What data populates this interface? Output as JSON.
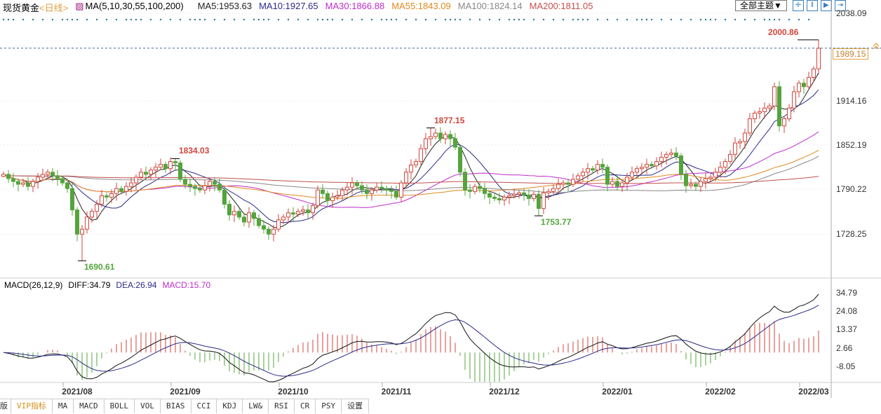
{
  "header": {
    "symbol": "现货黄金",
    "period": "<日线>",
    "ma_title": "MA(5,10,30,55,100,200)",
    "ma": [
      {
        "label": "MA5:1953.63",
        "color": "#222222"
      },
      {
        "label": "MA10:1927.65",
        "color": "#2a2a8a"
      },
      {
        "label": "MA30:1866.88",
        "color": "#c02ccc"
      },
      {
        "label": "MA55:1843.09",
        "color": "#e08a1e"
      },
      {
        "label": "MA100:1824.14",
        "color": "#888888"
      },
      {
        "label": "MA200:1811.05",
        "color": "#c0504d"
      }
    ]
  },
  "toolbar": {
    "theme": "全部主题▼",
    "icons": [
      "crosshair-icon",
      "zoom-in-icon",
      "play-icon",
      "end-icon"
    ]
  },
  "current_price": "1989.15",
  "macd_header": {
    "title": "MACD(26,12,9)",
    "diff": "DIFF:34.79",
    "dea": "DEA:26.94",
    "macd": "MACD:15.70"
  },
  "tabs": [
    "版",
    "VIP指标",
    "MA",
    "MACD",
    "BOLL",
    "VOL",
    "BIAS",
    "CCI",
    "KDJ",
    "LW&",
    "RSI",
    "CR",
    "PSY",
    "设置"
  ],
  "chart_data": {
    "type": "candlestick",
    "price_axis": {
      "ticks": [
        "2038.09",
        "1914.16",
        "1852.19",
        "1790.22",
        "1728.25"
      ],
      "range": [
        1728.25,
        2038.09
      ]
    },
    "macd_axis": {
      "ticks": [
        "34.79",
        "24.08",
        "13.37",
        "2.66",
        "-8.05"
      ],
      "range": [
        -8.05,
        34.79
      ]
    },
    "date_ticks": [
      {
        "label": "2021/08",
        "index": 15
      },
      {
        "label": "2021/09",
        "index": 37
      },
      {
        "label": "2021/10",
        "index": 59
      },
      {
        "label": "2021/11",
        "index": 80
      },
      {
        "label": "2021/12",
        "index": 102
      },
      {
        "label": "2022/01",
        "index": 125
      },
      {
        "label": "2022/02",
        "index": 146
      },
      {
        "label": "2022/03",
        "index": 165
      }
    ],
    "closes": [
      1812,
      1806,
      1802,
      1798,
      1800,
      1795,
      1802,
      1808,
      1812,
      1815,
      1810,
      1806,
      1800,
      1792,
      1762,
      1728,
      1735,
      1752,
      1760,
      1770,
      1782,
      1780,
      1785,
      1792,
      1788,
      1795,
      1800,
      1808,
      1815,
      1812,
      1818,
      1822,
      1826,
      1820,
      1830,
      1828,
      1805,
      1798,
      1795,
      1792,
      1790,
      1796,
      1802,
      1798,
      1790,
      1770,
      1755,
      1760,
      1752,
      1745,
      1758,
      1750,
      1740,
      1735,
      1728,
      1735,
      1748,
      1752,
      1758,
      1756,
      1760,
      1762,
      1758,
      1768,
      1790,
      1785,
      1775,
      1780,
      1782,
      1790,
      1794,
      1800,
      1796,
      1790,
      1785,
      1790,
      1794,
      1792,
      1790,
      1788,
      1780,
      1800,
      1815,
      1825,
      1830,
      1848,
      1862,
      1865,
      1870,
      1862,
      1868,
      1862,
      1850,
      1815,
      1790,
      1788,
      1795,
      1792,
      1785,
      1780,
      1778,
      1776,
      1780,
      1782,
      1784,
      1786,
      1783,
      1778,
      1784,
      1764,
      1786,
      1788,
      1792,
      1798,
      1800,
      1798,
      1805,
      1810,
      1815,
      1820,
      1818,
      1826,
      1822,
      1798,
      1802,
      1795,
      1800,
      1808,
      1815,
      1820,
      1822,
      1826,
      1824,
      1830,
      1836,
      1840,
      1842,
      1838,
      1812,
      1796,
      1798,
      1795,
      1802,
      1806,
      1808,
      1815,
      1822,
      1830,
      1840,
      1856,
      1858,
      1870,
      1890,
      1898,
      1900,
      1905,
      1908,
      1935,
      1880,
      1890,
      1905,
      1928,
      1940,
      1935,
      1948,
      1960,
      1989
    ],
    "annotations": [
      {
        "index": 166,
        "value": "2000.86",
        "type": "high",
        "color": "#d0463c"
      },
      {
        "index": 87,
        "value": "1877.15",
        "type": "high",
        "color": "#d0463c"
      },
      {
        "index": 35,
        "value": "1834.03",
        "type": "high",
        "color": "#d0463c"
      },
      {
        "index": 16,
        "value": "1690.61",
        "type": "low",
        "color": "#54a43c"
      },
      {
        "index": 109,
        "value": "1753.77",
        "type": "low",
        "color": "#54a43c"
      }
    ],
    "ma_periods": [
      5,
      10,
      30,
      55,
      100,
      200
    ],
    "up_color": "#d0463c",
    "down_color": "#54a43c"
  }
}
